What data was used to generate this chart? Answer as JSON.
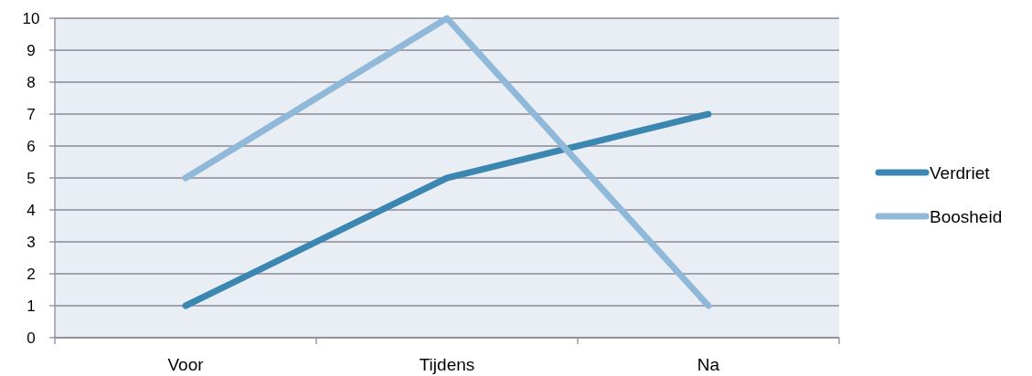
{
  "chart_data": {
    "type": "line",
    "categories": [
      "Voor",
      "Tijdens",
      "Na"
    ],
    "series": [
      {
        "name": "Verdriet",
        "color": "#3b87b1",
        "values": [
          1,
          5,
          7
        ]
      },
      {
        "name": "Boosheid",
        "color": "#8fb8d9",
        "values": [
          5,
          10,
          1
        ]
      }
    ],
    "ylim": [
      0,
      10
    ],
    "yticks": [
      0,
      1,
      2,
      3,
      4,
      5,
      6,
      7,
      8,
      9,
      10
    ],
    "grid": "y",
    "legend": "right",
    "marker": "none",
    "line_style": "solid"
  }
}
